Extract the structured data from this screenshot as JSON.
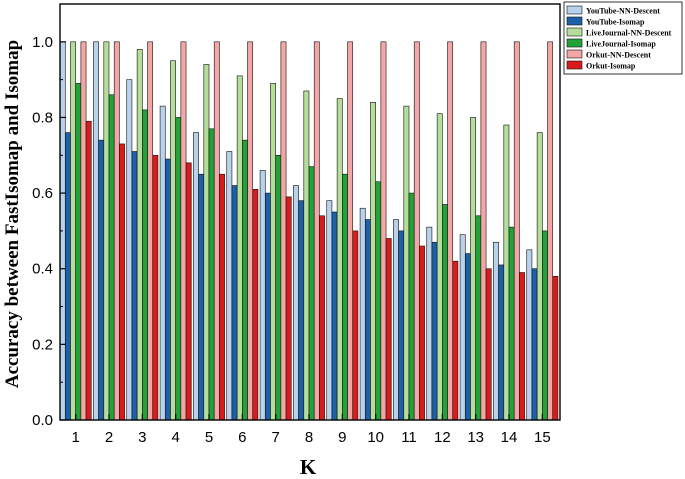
{
  "chart_data": {
    "type": "bar",
    "title": "",
    "xlabel": "K",
    "ylabel": "Accuracy between FastIsomap and Isomap",
    "categories": [
      "1",
      "2",
      "3",
      "4",
      "5",
      "6",
      "7",
      "8",
      "9",
      "10",
      "11",
      "12",
      "13",
      "14",
      "15"
    ],
    "ylim": [
      0,
      1.1
    ],
    "yticks": [
      "0.0",
      "0.2",
      "0.4",
      "0.6",
      "0.8",
      "1.0"
    ],
    "grid": false,
    "legend_position": "top-right",
    "series": [
      {
        "name": "YouTube-NN-Descent",
        "color": "#b7d2ea",
        "values": [
          1.0,
          1.0,
          0.9,
          0.83,
          0.76,
          0.71,
          0.66,
          0.62,
          0.58,
          0.56,
          0.53,
          0.51,
          0.49,
          0.47,
          0.45
        ]
      },
      {
        "name": "YouTube-Isomap",
        "color": "#1f5fa8",
        "values": [
          0.76,
          0.74,
          0.71,
          0.69,
          0.65,
          0.62,
          0.6,
          0.58,
          0.55,
          0.53,
          0.5,
          0.47,
          0.44,
          0.41,
          0.4
        ]
      },
      {
        "name": "LiveJournal-NN-Descent",
        "color": "#b5de9a",
        "values": [
          1.0,
          1.0,
          0.98,
          0.95,
          0.94,
          0.91,
          0.89,
          0.87,
          0.85,
          0.84,
          0.83,
          0.81,
          0.8,
          0.78,
          0.76
        ]
      },
      {
        "name": "LiveJournal-Isomap",
        "color": "#23a23a",
        "values": [
          0.89,
          0.86,
          0.82,
          0.8,
          0.77,
          0.74,
          0.7,
          0.67,
          0.65,
          0.63,
          0.6,
          0.57,
          0.54,
          0.51,
          0.5
        ]
      },
      {
        "name": "Orkut-NN-Descent",
        "color": "#f4a6a6",
        "values": [
          1.0,
          1.0,
          1.0,
          1.0,
          1.0,
          1.0,
          1.0,
          1.0,
          1.0,
          1.0,
          1.0,
          1.0,
          1.0,
          1.0,
          1.0
        ]
      },
      {
        "name": "Orkut-Isomap",
        "color": "#d81c1c",
        "values": [
          0.79,
          0.73,
          0.7,
          0.68,
          0.65,
          0.61,
          0.59,
          0.54,
          0.5,
          0.48,
          0.46,
          0.42,
          0.4,
          0.39,
          0.38
        ]
      }
    ]
  }
}
